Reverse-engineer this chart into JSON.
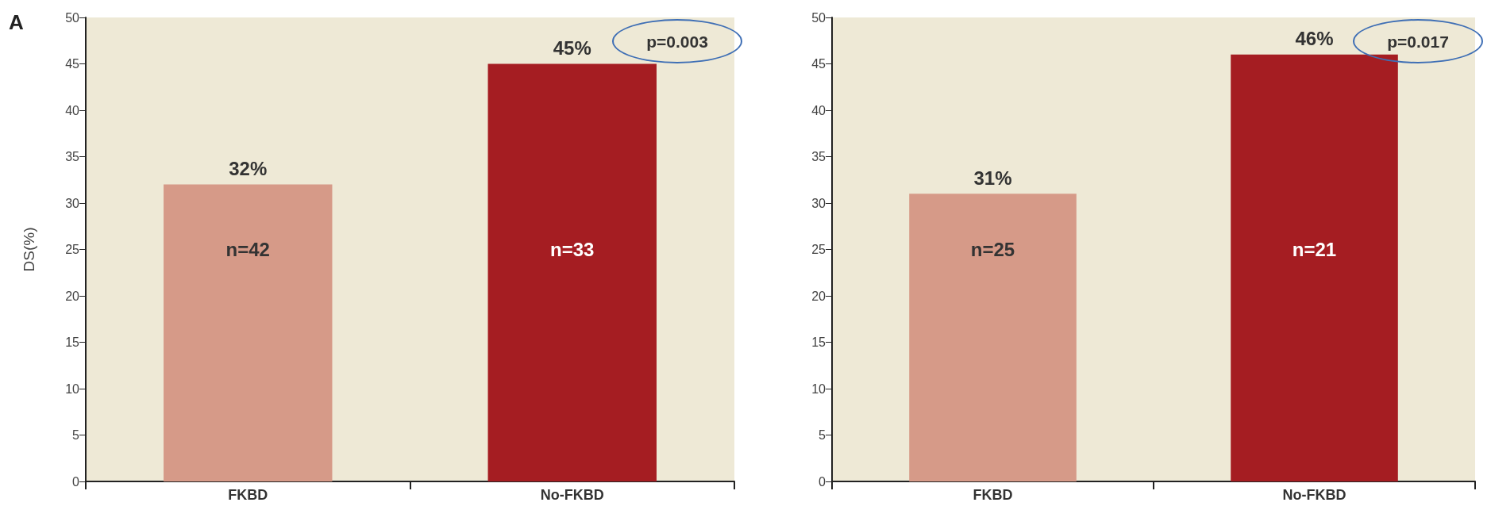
{
  "chart_data": [
    {
      "type": "bar",
      "title": "A",
      "ylabel": "DS(%)",
      "categories": [
        "FKBD",
        "No-FKBD"
      ],
      "values": [
        32,
        45
      ],
      "colors": [
        "#d69a88",
        "#a51d22"
      ],
      "value_labels": [
        "32%",
        "45%"
      ],
      "ylim": [
        0,
        50
      ],
      "yticks": [
        0,
        5,
        10,
        15,
        20,
        25,
        30,
        35,
        40,
        45,
        50
      ],
      "grid": false,
      "annotations": [
        "n=42",
        "n=33",
        "p=0.003"
      ]
    },
    {
      "type": "bar",
      "categories": [
        "FKBD",
        "No-FKBD"
      ],
      "values": [
        31,
        46
      ],
      "colors": [
        "#d69a88",
        "#a51d22"
      ],
      "value_labels": [
        "31%",
        "46%"
      ],
      "ylim": [
        0,
        50
      ],
      "yticks": [
        0,
        5,
        10,
        15,
        20,
        25,
        30,
        35,
        40,
        45,
        50
      ],
      "grid": false,
      "annotations": [
        "n=25",
        "n=21",
        "p=0.017"
      ]
    }
  ]
}
